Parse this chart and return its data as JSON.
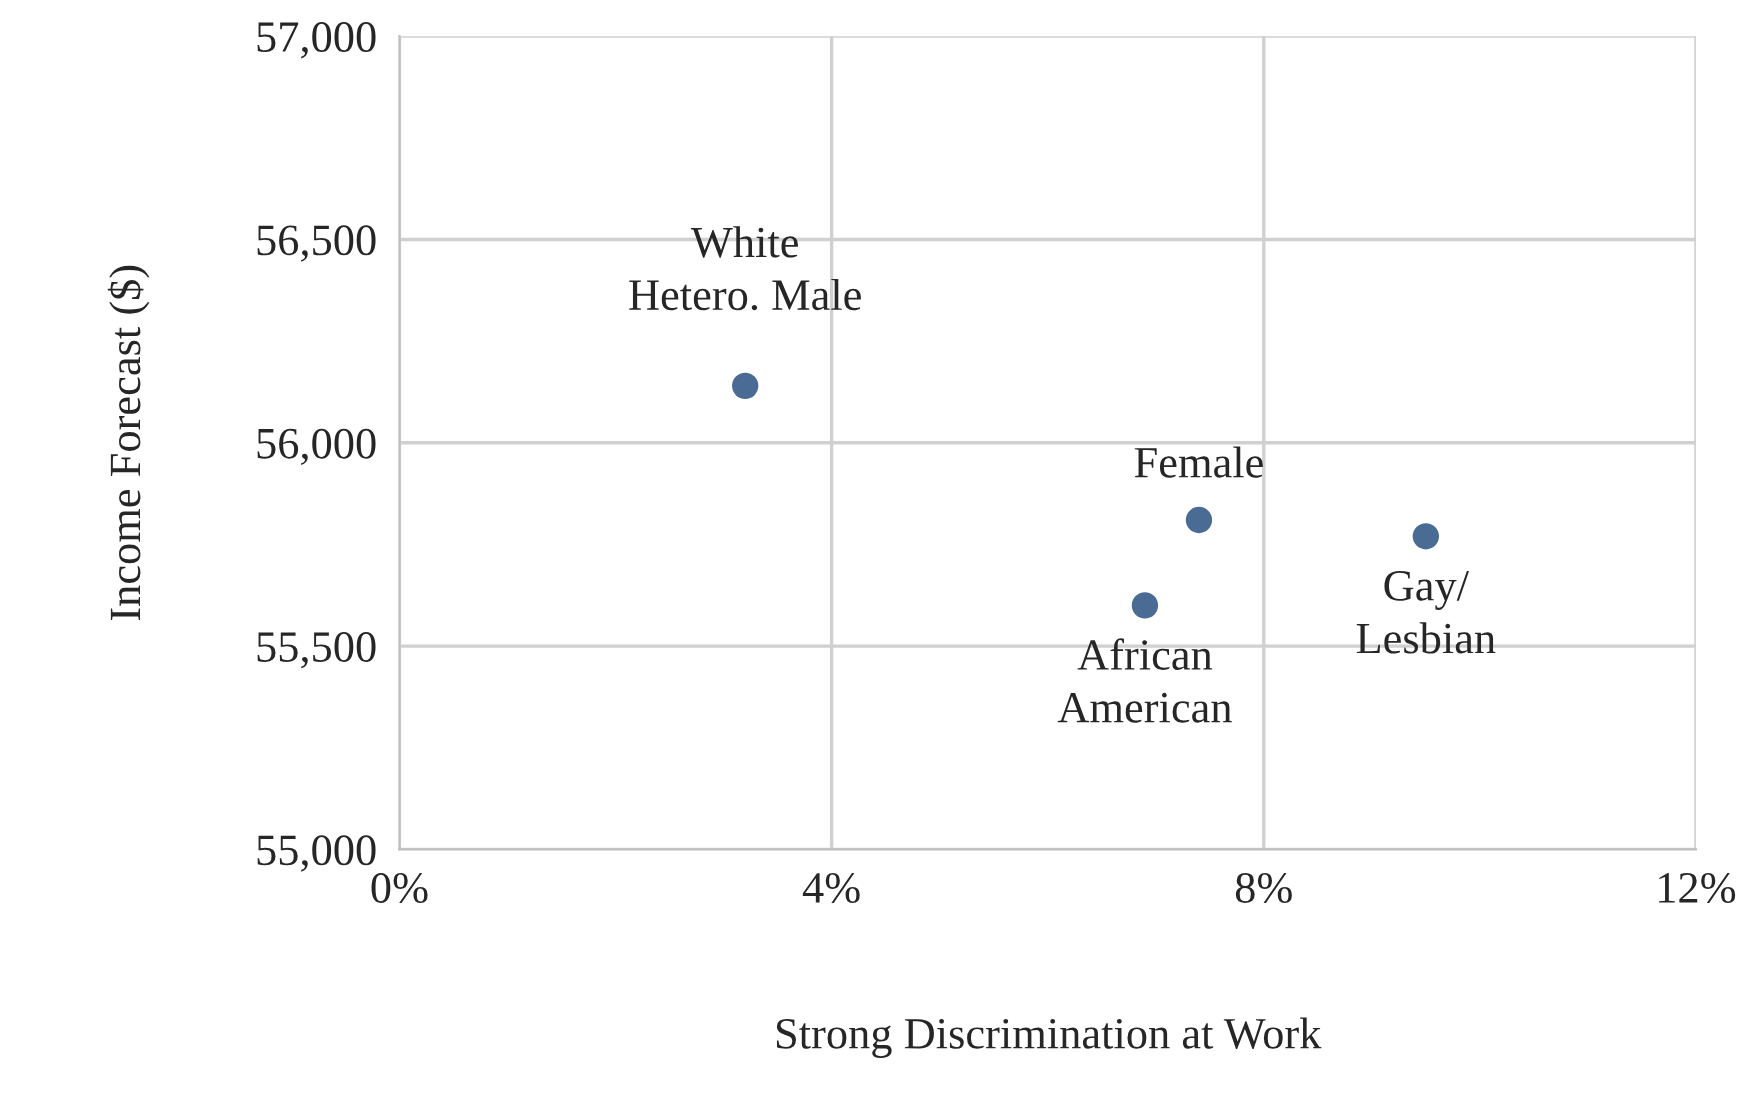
{
  "chart_data": {
    "type": "scatter",
    "xlabel": "Strong Discrimination at Work",
    "ylabel": "Income Forecast ($)",
    "x": [
      3.2,
      7.4,
      6.9,
      9.5
    ],
    "series": [
      {
        "color": "#4a6b94",
        "values": [
          56140,
          55810,
          55600,
          55770
        ]
      }
    ],
    "xlim": [
      0,
      12
    ],
    "xticks": [
      {
        "value": 0,
        "label": "0%"
      },
      {
        "value": 4,
        "label": "4%"
      },
      {
        "value": 8,
        "label": "8%"
      },
      {
        "value": 12,
        "label": "12%"
      }
    ],
    "ylim": [
      55000,
      57000
    ],
    "yticks": [
      {
        "value": 55000,
        "label": "55,000"
      },
      {
        "value": 55500,
        "label": "55,500"
      },
      {
        "value": 56000,
        "label": "56,000"
      },
      {
        "value": 56500,
        "label": "56,500"
      },
      {
        "value": 57000,
        "label": "57,000"
      }
    ],
    "grid": true,
    "marker": "circle",
    "annotations": [
      {
        "text": "White\nHetero. Male",
        "x": 3.2,
        "y": 56140
      },
      {
        "text": "Female",
        "x": 7.4,
        "y": 55810
      },
      {
        "text": "African\nAmerican",
        "x": 6.9,
        "y": 55600
      },
      {
        "text": "Gay/\nLesbian",
        "x": 9.5,
        "y": 55770
      }
    ]
  }
}
